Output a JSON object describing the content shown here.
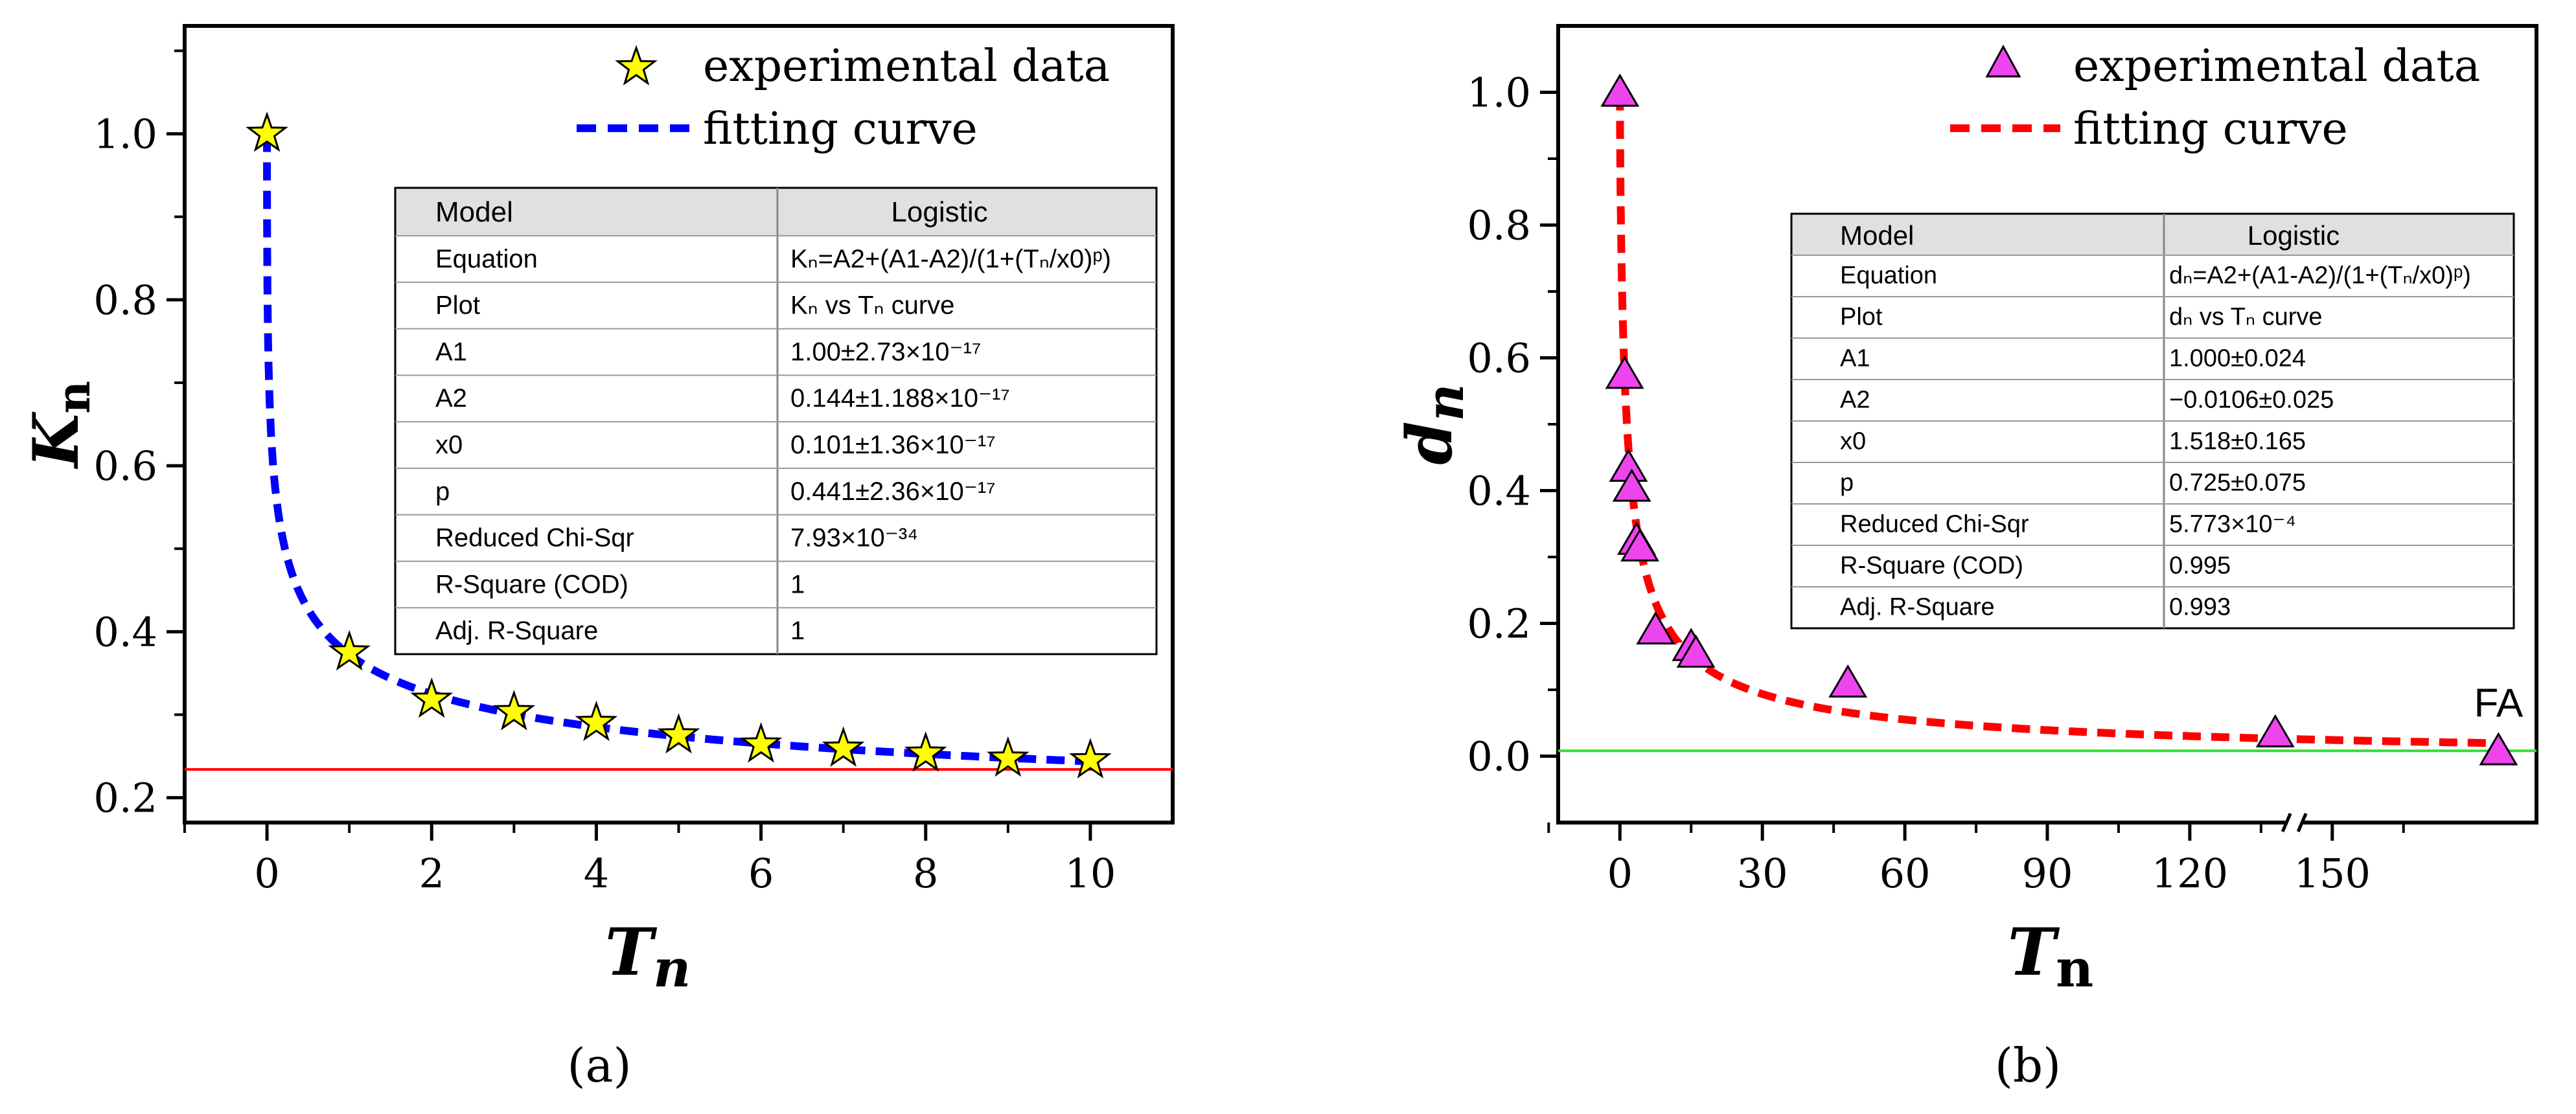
{
  "chart_data": [
    {
      "type": "scatter",
      "panel_label": "(a)",
      "xlabel": "T",
      "xlabel_sub": "n",
      "ylabel": "K",
      "ylabel_sub": "n",
      "xlim": [
        -1,
        11
      ],
      "ylim": [
        0.17,
        1.13
      ],
      "xticks": [
        0,
        2,
        4,
        6,
        8,
        10
      ],
      "xtick_labels": [
        "0",
        "2",
        "4",
        "6",
        "8",
        "10"
      ],
      "yticks": [
        0.2,
        0.4,
        0.6,
        0.8,
        1.0
      ],
      "ytick_labels": [
        "0.2",
        "0.4",
        "0.6",
        "0.8",
        "1.0"
      ],
      "reference_line": {
        "y": 0.234,
        "color": "#ff0000"
      },
      "series": [
        {
          "name": "experimental data",
          "marker": "star",
          "color": "#ffff00",
          "x": [
            0,
            1,
            2,
            3,
            4,
            5,
            6,
            7,
            8,
            9,
            10
          ],
          "y": [
            1.0,
            0.375,
            0.318,
            0.303,
            0.29,
            0.275,
            0.264,
            0.259,
            0.253,
            0.247,
            0.245
          ]
        },
        {
          "name": "fitting curve",
          "style": "dashed",
          "color": "#0000ff",
          "model": {
            "A1": 1.0,
            "A2": 0.144,
            "x0": 0.101,
            "p": 0.441
          }
        }
      ],
      "table": {
        "header": [
          "Model",
          "Logistic"
        ],
        "rows": [
          [
            "Equation",
            "Kₙ=A2+(A1-A2)/(1+(Tₙ/x0)ᵖ)"
          ],
          [
            "Plot",
            "Kₙ vs Tₙ curve"
          ],
          [
            "A1",
            "1.00±2.73×10⁻¹⁷"
          ],
          [
            "A2",
            "0.144±1.188×10⁻¹⁷"
          ],
          [
            "x0",
            "0.101±1.36×10⁻¹⁷"
          ],
          [
            "p",
            "0.441±2.36×10⁻¹⁷"
          ],
          [
            "Reduced Chi-Sqr",
            "7.93×10⁻³⁴"
          ],
          [
            "R-Square (COD)",
            "1"
          ],
          [
            "Adj. R-Square",
            "1"
          ]
        ]
      }
    },
    {
      "type": "scatter",
      "panel_label": "(b)",
      "xlabel": "T",
      "xlabel_sub": "n",
      "ylabel": "d",
      "ylabel_sub": "n",
      "xlim": [
        -13,
        193
      ],
      "ylim": [
        -0.1,
        1.1
      ],
      "xticks": [
        0,
        30,
        60,
        90,
        120,
        150
      ],
      "xtick_labels": [
        "0",
        "30",
        "60",
        "90",
        "120",
        "150"
      ],
      "axis_break_x": 142,
      "yticks": [
        0.0,
        0.2,
        0.4,
        0.6,
        0.8,
        1.0
      ],
      "ytick_labels": [
        "0.0",
        "0.2",
        "0.4",
        "0.6",
        "0.8",
        "1.0"
      ],
      "reference_line": {
        "y": 0.008,
        "color": "#33dd33"
      },
      "annotation": {
        "text": "FA",
        "x": 185,
        "y": 0.04
      },
      "series": [
        {
          "name": "experimental data",
          "marker": "triangle",
          "color": "#ee44ee",
          "x": [
            0,
            1,
            1.8,
            2.5,
            3.5,
            4.2,
            7.5,
            15,
            16,
            48,
            138,
            185
          ],
          "y": [
            1.0,
            0.575,
            0.435,
            0.405,
            0.325,
            0.315,
            0.19,
            0.165,
            0.155,
            0.11,
            0.035,
            0.008
          ]
        },
        {
          "name": "fitting curve",
          "style": "dashed",
          "color": "#ff0000",
          "model": {
            "A1": 1.0,
            "A2": -0.0106,
            "x0": 1.518,
            "p": 0.725
          },
          "x_max": 185
        }
      ],
      "table": {
        "header": [
          "Model",
          "Logistic"
        ],
        "rows": [
          [
            "Equation",
            "dₙ=A2+(A1-A2)/(1+(Tₙ/x0)ᵖ)"
          ],
          [
            "Plot",
            "dₙ vs Tₙ curve"
          ],
          [
            "A1",
            "1.000±0.024"
          ],
          [
            "A2",
            "−0.0106±0.025"
          ],
          [
            "x0",
            "1.518±0.165"
          ],
          [
            "p",
            "0.725±0.075"
          ],
          [
            "Reduced Chi-Sqr",
            "5.773×10⁻⁴"
          ],
          [
            "R-Square (COD)",
            "0.995"
          ],
          [
            "Adj. R-Square",
            "0.993"
          ]
        ]
      }
    }
  ]
}
